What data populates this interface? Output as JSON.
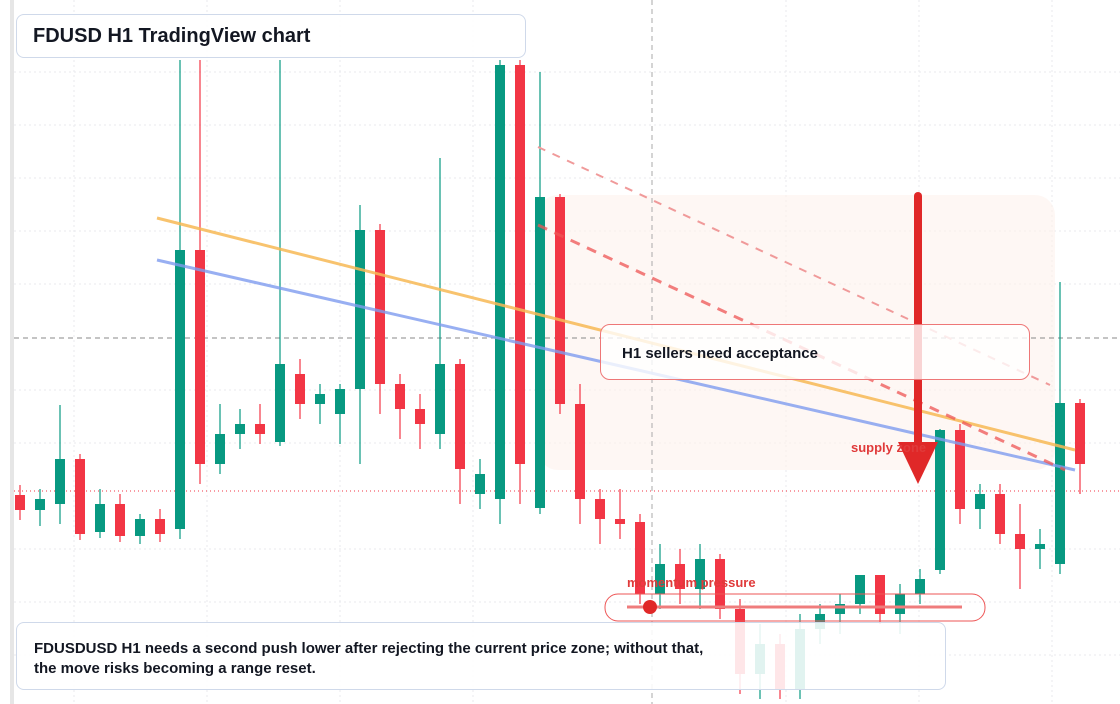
{
  "title": "FDUSD H1 TradingView chart",
  "annotations": {
    "callout": "H1 sellers need acceptance",
    "zone": "supply zone",
    "momentum": "momentum pressure"
  },
  "caption": "FDUSDUSD H1 needs a second push lower after rejecting the current price zone; without that, the move risks becoming a range reset.",
  "chart_data": {
    "type": "candlestick",
    "up_color": "#089981",
    "down_color": "#f23645",
    "ylim": [
      0,
      704
    ],
    "open": [
      209,
      194,
      200,
      245,
      172,
      200,
      168,
      185,
      175,
      454,
      240,
      270,
      280,
      262,
      330,
      300,
      290,
      315,
      474,
      320,
      295,
      270,
      340,
      210,
      205,
      639,
      196,
      507,
      300,
      205,
      185,
      182,
      110,
      140,
      115,
      145,
      95,
      30,
      60,
      15,
      75,
      90,
      100,
      129,
      90,
      110,
      134,
      274,
      195,
      210,
      170,
      155,
      140,
      301
    ],
    "high": [
      219,
      215,
      299,
      250,
      215,
      210,
      190,
      195,
      644,
      644,
      300,
      295,
      300,
      644,
      345,
      320,
      320,
      499,
      480,
      330,
      310,
      546,
      345,
      245,
      644,
      644,
      632,
      510,
      320,
      215,
      215,
      190,
      160,
      155,
      160,
      150,
      105,
      80,
      70,
      90,
      100,
      110,
      129,
      129,
      120,
      135,
      275,
      280,
      220,
      220,
      200,
      175,
      422,
      305
    ],
    "low": [
      184,
      178,
      180,
      164,
      166,
      162,
      160,
      162,
      165,
      220,
      230,
      255,
      260,
      258,
      285,
      280,
      260,
      240,
      290,
      265,
      255,
      255,
      200,
      195,
      180,
      200,
      190,
      290,
      180,
      160,
      165,
      100,
      95,
      100,
      95,
      85,
      10,
      5,
      5,
      5,
      60,
      70,
      90,
      80,
      70,
      100,
      130,
      180,
      175,
      160,
      115,
      135,
      130,
      210
    ],
    "close": [
      194,
      205,
      245,
      170,
      200,
      168,
      185,
      170,
      454,
      240,
      270,
      280,
      270,
      340,
      300,
      310,
      315,
      474,
      320,
      295,
      280,
      340,
      235,
      230,
      639,
      240,
      507,
      300,
      205,
      185,
      180,
      110,
      140,
      115,
      145,
      95,
      30,
      60,
      15,
      75,
      90,
      100,
      129,
      90,
      110,
      125,
      274,
      195,
      210,
      170,
      155,
      160,
      301,
      240
    ]
  }
}
